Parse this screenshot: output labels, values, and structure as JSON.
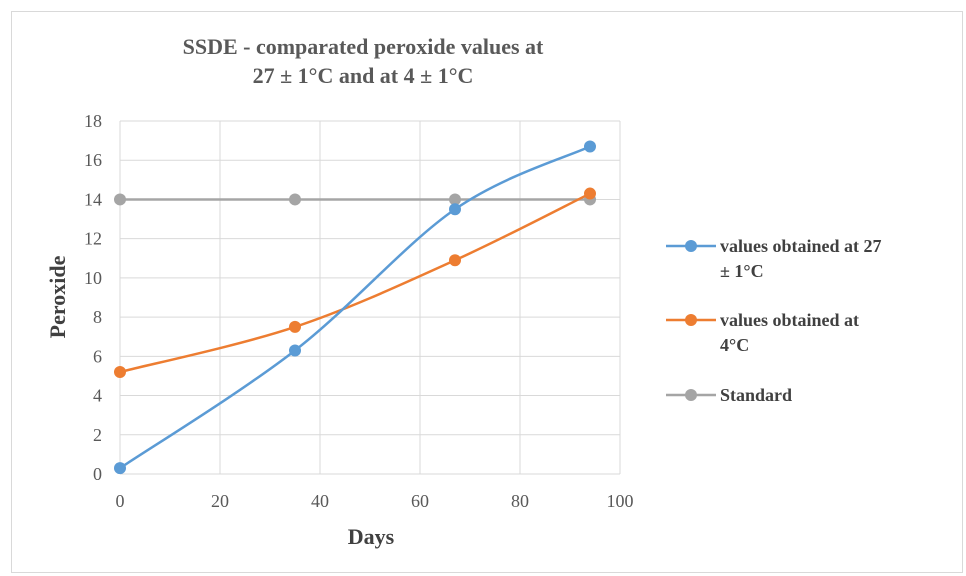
{
  "chart_data": {
    "type": "scatter",
    "title_lines": [
      "SSDE - comparated peroxide values at",
      "27 ± 1°C and at 4 ± 1°C"
    ],
    "xlabel": "Days",
    "ylabel": "Peroxide",
    "xlim": [
      0,
      100
    ],
    "ylim": [
      0,
      18
    ],
    "xticks": [
      0,
      20,
      40,
      60,
      80,
      100
    ],
    "yticks": [
      0,
      2,
      4,
      6,
      8,
      10,
      12,
      14,
      16,
      18
    ],
    "grid": "vertical and horizontal",
    "legend_position": "right",
    "smooth_lines": true,
    "series": [
      {
        "name_lines": [
          "values obtained at 27",
          "± 1°C"
        ],
        "color": "#5B9BD5",
        "points": [
          {
            "x": 0,
            "y": 0.3
          },
          {
            "x": 35,
            "y": 6.3
          },
          {
            "x": 67,
            "y": 13.5
          },
          {
            "x": 94,
            "y": 16.7
          }
        ]
      },
      {
        "name_lines": [
          "values obtained at",
          "4°C"
        ],
        "color": "#ED7D31",
        "points": [
          {
            "x": 0,
            "y": 5.2
          },
          {
            "x": 35,
            "y": 7.5
          },
          {
            "x": 67,
            "y": 10.9
          },
          {
            "x": 94,
            "y": 14.3
          }
        ]
      },
      {
        "name_lines": [
          "Standard"
        ],
        "color": "#A5A5A5",
        "points": [
          {
            "x": 0,
            "y": 14
          },
          {
            "x": 35,
            "y": 14
          },
          {
            "x": 67,
            "y": 14
          },
          {
            "x": 94,
            "y": 14
          }
        ]
      }
    ]
  }
}
